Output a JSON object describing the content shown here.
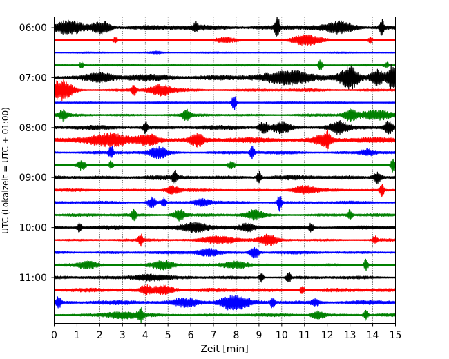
{
  "chart_data": {
    "type": "line",
    "title": "",
    "xlabel": "Zeit  [min]",
    "ylabel": "UTC (Lokalzeit = UTC + 01:00)",
    "xlim": [
      0,
      15
    ],
    "x_ticks": [
      "0",
      "1",
      "2",
      "3",
      "4",
      "5",
      "6",
      "7",
      "8",
      "9",
      "10",
      "11",
      "12",
      "13",
      "14",
      "15"
    ],
    "y_ticks": [
      "06:00",
      "07:00",
      "08:00",
      "09:00",
      "10:00",
      "11:00"
    ],
    "y_tick_rows": [
      0,
      4,
      8,
      12,
      16,
      20
    ],
    "grid_x": true,
    "trace_colors": [
      "#000000",
      "#ff0000",
      "#0000ff",
      "#008000"
    ],
    "traces": [
      {
        "start": "06:00",
        "color": "#000000",
        "amplitude": 0.35,
        "events": [
          [
            0.6,
            0.9,
            0.6
          ],
          [
            2.1,
            0.9,
            0.4
          ],
          [
            6.2,
            0.8,
            0.1
          ],
          [
            9.8,
            1.8,
            0.1
          ],
          [
            12.6,
            0.7,
            0.6
          ],
          [
            14.4,
            1.2,
            0.1
          ]
        ]
      },
      {
        "start": "06:15",
        "color": "#ff0000",
        "amplitude": 0.12,
        "events": [
          [
            2.7,
            0.5,
            0.1
          ],
          [
            7.5,
            0.4,
            0.5
          ],
          [
            11.1,
            0.8,
            0.7
          ],
          [
            13.9,
            0.5,
            0.1
          ]
        ]
      },
      {
        "start": "06:30",
        "color": "#0000ff",
        "amplitude": 0.1,
        "events": [
          [
            4.5,
            0.2,
            0.3
          ]
        ]
      },
      {
        "start": "06:45",
        "color": "#008000",
        "amplitude": 0.12,
        "events": [
          [
            1.2,
            0.5,
            0.1
          ],
          [
            11.7,
            1.0,
            0.1
          ],
          [
            14.6,
            0.5,
            0.1
          ]
        ]
      },
      {
        "start": "07:00",
        "color": "#000000",
        "amplitude": 0.45,
        "events": [
          [
            2.0,
            0.5,
            0.5
          ],
          [
            10.5,
            0.8,
            1.0
          ],
          [
            13.0,
            1.6,
            0.4
          ],
          [
            14.2,
            1.0,
            0.3
          ],
          [
            14.9,
            2.0,
            0.2
          ]
        ]
      },
      {
        "start": "07:15",
        "color": "#ff0000",
        "amplitude": 0.2,
        "events": [
          [
            0.3,
            1.6,
            0.5
          ],
          [
            3.5,
            0.9,
            0.1
          ],
          [
            4.7,
            0.8,
            0.5
          ]
        ]
      },
      {
        "start": "07:30",
        "color": "#0000ff",
        "amplitude": 0.12,
        "events": [
          [
            7.9,
            1.3,
            0.1
          ]
        ]
      },
      {
        "start": "07:45",
        "color": "#008000",
        "amplitude": 0.18,
        "events": [
          [
            0.4,
            0.8,
            0.2
          ],
          [
            5.8,
            0.8,
            0.2
          ],
          [
            13.0,
            0.9,
            0.3
          ],
          [
            14.2,
            0.7,
            0.8
          ]
        ]
      },
      {
        "start": "08:00",
        "color": "#000000",
        "amplitude": 0.28,
        "events": [
          [
            4.0,
            1.0,
            0.1
          ],
          [
            9.2,
            0.9,
            0.2
          ],
          [
            10.0,
            0.8,
            0.4
          ],
          [
            12.5,
            0.8,
            0.4
          ],
          [
            14.7,
            1.0,
            0.2
          ]
        ]
      },
      {
        "start": "08:15",
        "color": "#ff0000",
        "amplitude": 0.35,
        "events": [
          [
            2.3,
            0.9,
            0.8
          ],
          [
            4.2,
            0.8,
            0.5
          ],
          [
            6.3,
            0.9,
            0.3
          ],
          [
            11.8,
            0.7,
            0.4
          ],
          [
            12.0,
            0.9,
            0.1
          ]
        ]
      },
      {
        "start": "08:30",
        "color": "#0000ff",
        "amplitude": 0.22,
        "events": [
          [
            2.5,
            1.0,
            0.1
          ],
          [
            4.6,
            0.8,
            0.4
          ],
          [
            8.7,
            1.0,
            0.1
          ],
          [
            13.8,
            0.5,
            0.3
          ]
        ]
      },
      {
        "start": "08:45",
        "color": "#008000",
        "amplitude": 0.12,
        "events": [
          [
            1.2,
            0.8,
            0.2
          ],
          [
            2.5,
            0.7,
            0.1
          ],
          [
            7.8,
            0.6,
            0.2
          ],
          [
            14.9,
            1.2,
            0.1
          ]
        ]
      },
      {
        "start": "09:00",
        "color": "#000000",
        "amplitude": 0.3,
        "events": [
          [
            5.3,
            1.0,
            0.1
          ],
          [
            9.0,
            0.9,
            0.1
          ],
          [
            14.2,
            0.8,
            0.2
          ]
        ]
      },
      {
        "start": "09:15",
        "color": "#ff0000",
        "amplitude": 0.18,
        "events": [
          [
            5.2,
            0.6,
            0.3
          ],
          [
            11.0,
            0.6,
            0.5
          ],
          [
            14.4,
            1.0,
            0.1
          ]
        ]
      },
      {
        "start": "09:30",
        "color": "#0000ff",
        "amplitude": 0.2,
        "events": [
          [
            4.3,
            0.8,
            0.2
          ],
          [
            4.8,
            0.7,
            0.1
          ],
          [
            9.9,
            1.3,
            0.1
          ],
          [
            6.5,
            0.5,
            0.4
          ]
        ]
      },
      {
        "start": "09:45",
        "color": "#008000",
        "amplitude": 0.2,
        "events": [
          [
            3.5,
            0.9,
            0.1
          ],
          [
            5.5,
            0.9,
            0.3
          ],
          [
            8.8,
            0.7,
            0.4
          ],
          [
            13.0,
            0.9,
            0.1
          ]
        ]
      },
      {
        "start": "10:00",
        "color": "#000000",
        "amplitude": 0.25,
        "events": [
          [
            1.1,
            0.7,
            0.1
          ],
          [
            6.2,
            0.8,
            0.6
          ],
          [
            8.5,
            0.5,
            0.3
          ],
          [
            11.3,
            0.7,
            0.1
          ]
        ]
      },
      {
        "start": "10:15",
        "color": "#ff0000",
        "amplitude": 0.18,
        "events": [
          [
            3.8,
            0.9,
            0.1
          ],
          [
            7.3,
            0.6,
            0.8
          ],
          [
            9.4,
            0.8,
            0.4
          ],
          [
            14.1,
            0.6,
            0.1
          ]
        ]
      },
      {
        "start": "10:30",
        "color": "#0000ff",
        "amplitude": 0.2,
        "events": [
          [
            6.8,
            0.6,
            0.5
          ],
          [
            8.8,
            0.9,
            0.2
          ]
        ]
      },
      {
        "start": "10:45",
        "color": "#008000",
        "amplitude": 0.18,
        "events": [
          [
            1.5,
            0.5,
            0.5
          ],
          [
            4.8,
            0.7,
            0.5
          ],
          [
            8.0,
            0.6,
            0.6
          ],
          [
            13.7,
            1.0,
            0.1
          ]
        ]
      },
      {
        "start": "11:00",
        "color": "#000000",
        "amplitude": 0.2,
        "events": [
          [
            4.2,
            0.5,
            0.8
          ],
          [
            9.1,
            0.8,
            0.1
          ],
          [
            10.3,
            0.9,
            0.1
          ]
        ]
      },
      {
        "start": "11:15",
        "color": "#ff0000",
        "amplitude": 0.25,
        "events": [
          [
            4.0,
            0.7,
            0.2
          ],
          [
            4.8,
            0.7,
            0.5
          ],
          [
            10.9,
            0.7,
            0.1
          ]
        ]
      },
      {
        "start": "11:30",
        "color": "#0000ff",
        "amplitude": 0.28,
        "events": [
          [
            0.2,
            0.9,
            0.1
          ],
          [
            5.8,
            0.6,
            0.6
          ],
          [
            7.9,
            1.1,
            0.6
          ],
          [
            9.6,
            0.8,
            0.1
          ],
          [
            11.5,
            0.5,
            0.2
          ]
        ]
      },
      {
        "start": "11:45",
        "color": "#008000",
        "amplitude": 0.2,
        "events": [
          [
            3.0,
            0.5,
            0.8
          ],
          [
            3.8,
            0.9,
            0.1
          ],
          [
            11.6,
            0.6,
            0.3
          ],
          [
            13.7,
            0.9,
            0.1
          ]
        ]
      }
    ]
  }
}
